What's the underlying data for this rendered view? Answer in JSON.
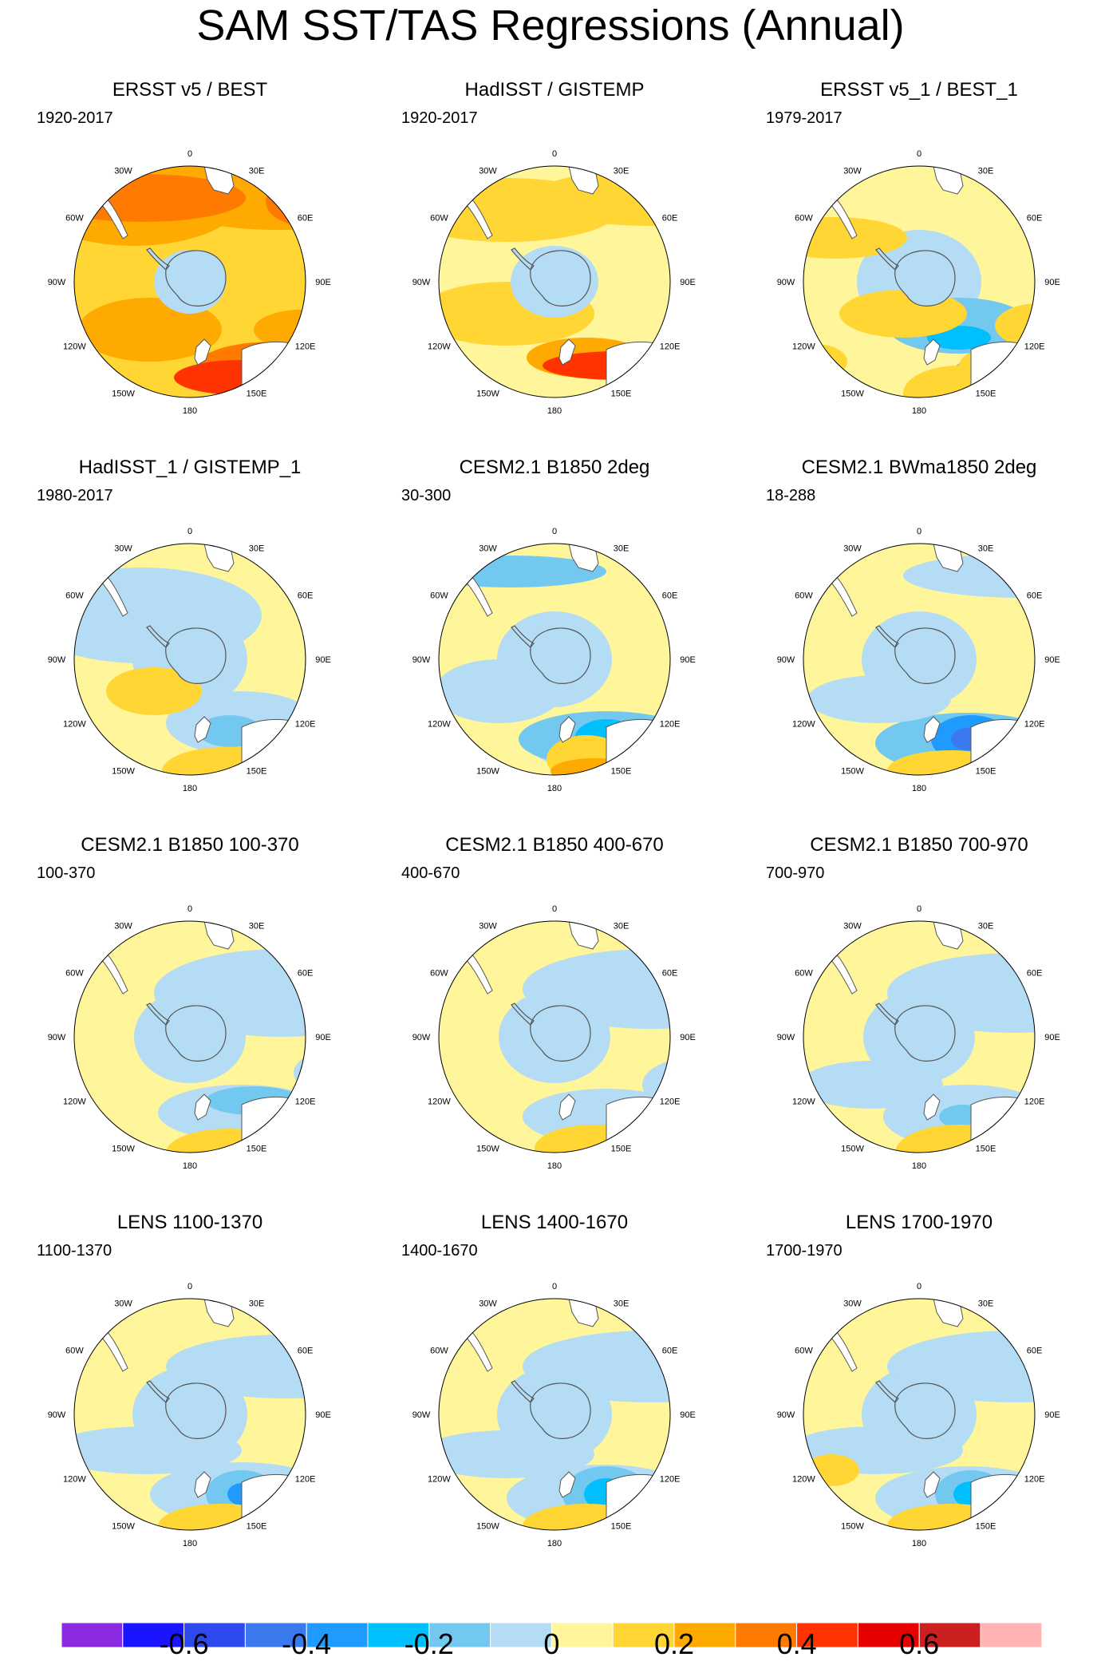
{
  "chart_data": {
    "type": "polar-contour-map",
    "title": "SAM SST/TAS Regressions (Annual)",
    "projection": "south polar stereographic",
    "lon_labels": [
      "0",
      "30E",
      "60E",
      "90E",
      "120E",
      "150E",
      "180",
      "150W",
      "120W",
      "90W",
      "60W",
      "30W"
    ],
    "panels": [
      {
        "title": "ERSST v5 / BEST",
        "period": "1920-2017",
        "key": "p1"
      },
      {
        "title": "HadISST / GISTEMP",
        "period": "1920-2017",
        "key": "p2"
      },
      {
        "title": "ERSST v5_1 / BEST_1",
        "period": "1979-2017",
        "key": "p3"
      },
      {
        "title": "HadISST_1 / GISTEMP_1",
        "period": "1980-2017",
        "key": "p4"
      },
      {
        "title": "CESM2.1 B1850 2deg",
        "period": "30-300",
        "key": "p5"
      },
      {
        "title": "CESM2.1 BWma1850 2deg",
        "period": "18-288",
        "key": "p6"
      },
      {
        "title": "CESM2.1 B1850 100-370",
        "period": "100-370",
        "key": "p7"
      },
      {
        "title": "CESM2.1 B1850 400-670",
        "period": "400-670",
        "key": "p8"
      },
      {
        "title": "CESM2.1 B1850 700-970",
        "period": "700-970",
        "key": "p9"
      },
      {
        "title": "LENS 1100-1370",
        "period": "1100-1370",
        "key": "p10"
      },
      {
        "title": "LENS 1400-1670",
        "period": "1400-1670",
        "key": "p11"
      },
      {
        "title": "LENS 1700-1970",
        "period": "1700-1970",
        "key": "p12"
      }
    ],
    "colorbar": {
      "levels": [
        -0.7,
        -0.6,
        -0.5,
        -0.4,
        -0.3,
        -0.2,
        -0.1,
        0,
        0.1,
        0.2,
        0.3,
        0.4,
        0.5,
        0.6,
        0.7
      ],
      "colors": [
        "#8a2be2",
        "#1a14ff",
        "#2e4aee",
        "#3a7aee",
        "#1f9aff",
        "#00bfff",
        "#73c8f0",
        "#b4dcf4",
        "#fff59a",
        "#ffd633",
        "#ffaa00",
        "#ff7a00",
        "#ff3300",
        "#e60000",
        "#cc1f1f",
        "#ffb3b3"
      ],
      "tick_labels": [
        "-0.6",
        "-0.4",
        "-0.2",
        "0",
        "0.2",
        "0.4",
        "0.6"
      ],
      "tick_values": [
        -0.6,
        -0.4,
        -0.2,
        0,
        0.2,
        0.4,
        0.6
      ]
    }
  },
  "colors": {
    "antarctica": "#b4dcf4",
    "coast": "#555555",
    "background": "#ffffff"
  }
}
